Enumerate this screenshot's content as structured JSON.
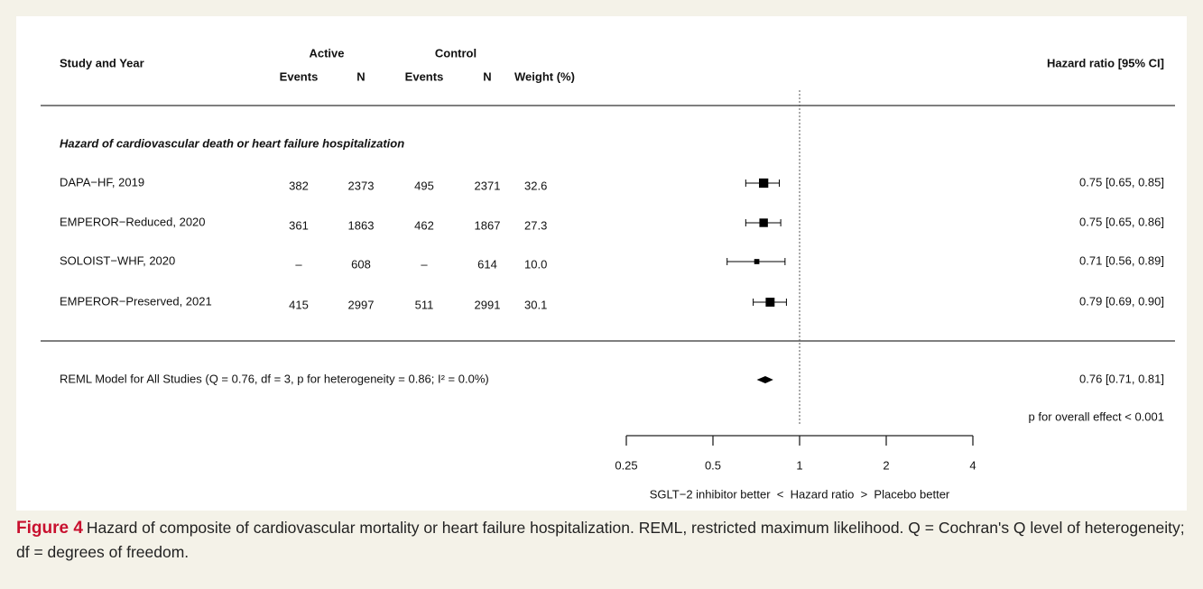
{
  "chart_data": {
    "type": "forest",
    "header": {
      "study": "Study and Year",
      "active": "Active",
      "control": "Control",
      "active_events": "Events",
      "active_n": "N",
      "control_events": "Events",
      "control_n": "N",
      "weight": "Weight (%)",
      "effect": "Hazard ratio [95% CI]"
    },
    "group_title": "Hazard of cardiovascular death or heart failure hospitalization",
    "categories": [
      "DAPA−HF, 2019",
      "EMPEROR−Reduced, 2020",
      "SOLOIST−WHF, 2020",
      "EMPEROR−Preserved, 2021"
    ],
    "active_events": [
      382,
      361,
      "–",
      415
    ],
    "active_n": [
      2373,
      1863,
      608,
      2997
    ],
    "control_events": [
      495,
      462,
      "–",
      511
    ],
    "control_n": [
      2371,
      1867,
      614,
      2991
    ],
    "weights": [
      32.6,
      27.3,
      10.0,
      30.1
    ],
    "weight_labels": [
      "32.6",
      "27.3",
      "10.0",
      "30.1"
    ],
    "values": [
      0.75,
      0.75,
      0.71,
      0.79
    ],
    "ci_low": [
      0.65,
      0.65,
      0.56,
      0.69
    ],
    "ci_high": [
      0.85,
      0.86,
      0.89,
      0.9
    ],
    "value_labels": [
      "0.75 [0.65, 0.85]",
      "0.75 [0.65, 0.86]",
      "0.71 [0.56, 0.89]",
      "0.79 [0.69, 0.90]"
    ],
    "summary": {
      "label": "REML Model for All Studies (Q = 0.76, df = 3, p for heterogeneity = 0.86; I² = 0.0%)",
      "value": 0.76,
      "ci_low": 0.71,
      "ci_high": 0.81,
      "value_label": "0.76 [0.71, 0.81]"
    },
    "overall_effect": "p for overall effect < 0.001",
    "log_x": true,
    "reference": 1,
    "xlim": [
      0.25,
      4
    ],
    "xticks": [
      0.25,
      0.5,
      1,
      2,
      4
    ],
    "xlabel": "SGLT−2 inhibitor better  <  Hazard ratio  >  Placebo better",
    "color": "#000000",
    "caption_label": "Figure 4",
    "caption_text": "Hazard of composite of cardiovascular mortality or heart failure hospitalization. REML, restricted maximum likelihood. Q = Cochran's Q level of heterogeneity; df = degrees of freedom."
  }
}
